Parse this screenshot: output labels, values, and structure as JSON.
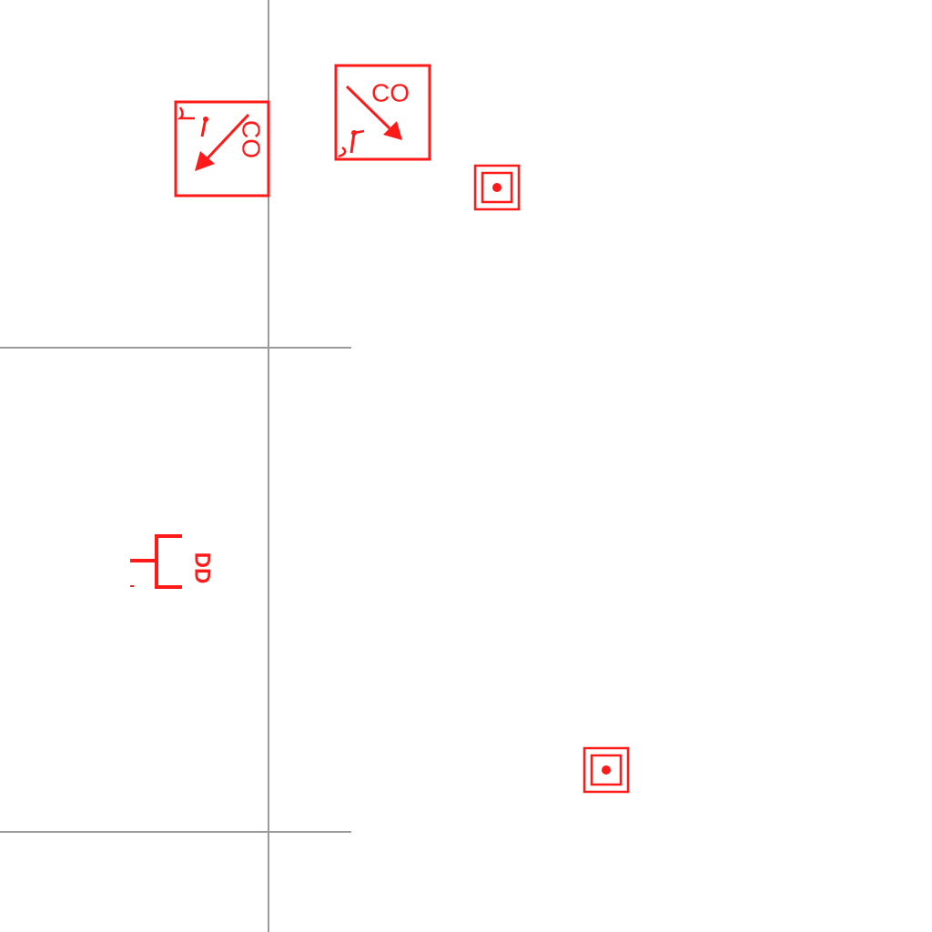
{
  "colors": {
    "symbol": "#ff1a1a",
    "wall": "#9a9a9a",
    "background": "#ffffff"
  },
  "detectors": [
    {
      "icon": "co-detector-icon",
      "label": "CO"
    },
    {
      "icon": "co-detector-icon",
      "label": "CO"
    }
  ],
  "device": {
    "icon": "duct-detector-icon",
    "label": "DD"
  },
  "devices": [
    {
      "icon": "concentric-square-device-icon"
    },
    {
      "icon": "concentric-square-device-icon"
    }
  ]
}
